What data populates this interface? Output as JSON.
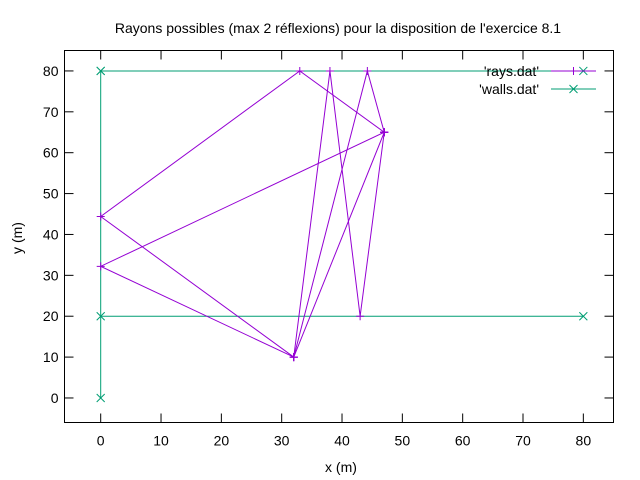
{
  "chart_data": {
    "type": "line",
    "title": "Rayons possibles (max 2 réflexions) pour la disposition de l'exercice 8.1",
    "xlabel": "x (m)",
    "ylabel": "y (m)",
    "xlim": [
      -6,
      85
    ],
    "ylim": [
      -6,
      85
    ],
    "xticks": [
      0,
      10,
      20,
      30,
      40,
      50,
      60,
      70,
      80
    ],
    "yticks": [
      0,
      10,
      20,
      30,
      40,
      50,
      60,
      70,
      80
    ],
    "grid": false,
    "legend_position": "top-right",
    "series": [
      {
        "name": "'rays.dat'",
        "color": "#9400d3",
        "marker": "plus",
        "segments": [
          [
            [
              32,
              10
            ],
            [
              47,
              65
            ]
          ],
          [
            [
              32,
              10
            ],
            [
              0,
              44.4
            ],
            [
              33,
              80
            ],
            [
              47,
              65
            ]
          ],
          [
            [
              32,
              10
            ],
            [
              0,
              32.2
            ],
            [
              47,
              65
            ]
          ],
          [
            [
              32,
              10
            ],
            [
              38,
              80
            ],
            [
              43,
              20
            ],
            [
              47,
              65
            ]
          ],
          [
            [
              32,
              10
            ],
            [
              44.2,
              80
            ],
            [
              47,
              65
            ]
          ]
        ]
      },
      {
        "name": "'walls.dat'",
        "color": "#009e73",
        "marker": "x",
        "segments": [
          [
            [
              0,
              0
            ],
            [
              0,
              80
            ]
          ],
          [
            [
              0,
              80
            ],
            [
              80,
              80
            ]
          ],
          [
            [
              0,
              20
            ],
            [
              80,
              20
            ]
          ]
        ]
      }
    ]
  }
}
